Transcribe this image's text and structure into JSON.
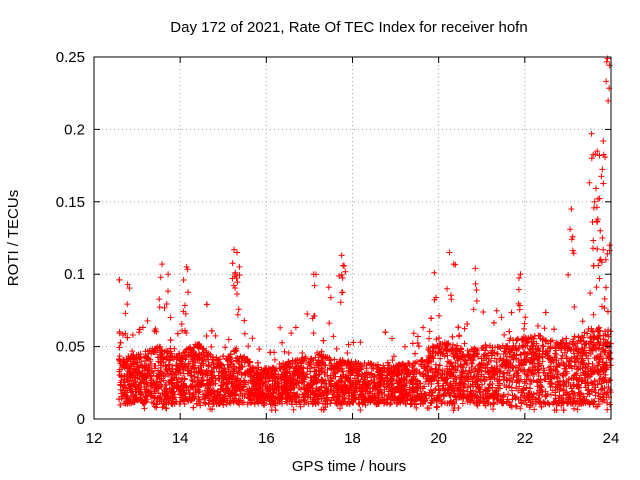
{
  "chart_data": {
    "type": "scatter",
    "title": "Day 172 of 2021, Rate Of TEC Index for receiver hofn",
    "xlabel": "GPS time / hours",
    "ylabel": "ROTI / TECUs",
    "xlim": [
      12,
      24
    ],
    "ylim": [
      0,
      0.25
    ],
    "xticks": [
      12,
      14,
      16,
      18,
      20,
      22,
      24
    ],
    "xtick_labels": [
      "12",
      "14",
      "16",
      "18",
      "20",
      "22",
      "24"
    ],
    "yticks": [
      0,
      0.05,
      0.1,
      0.15,
      0.2,
      0.25
    ],
    "ytick_labels": [
      "0",
      "0.05",
      "0.1",
      "0.15",
      "0.2",
      "0.25"
    ],
    "grid": true,
    "marker": "+",
    "color": "#ff0000",
    "series": [
      {
        "name": "ROTI",
        "x_range": [
          12.58,
          24.0
        ],
        "baseline_range": [
          0.01,
          0.05
        ],
        "notable_points": [
          {
            "x": 12.78,
            "y": 0.093
          },
          {
            "x": 13.58,
            "y": 0.107
          },
          {
            "x": 13.72,
            "y": 0.1
          },
          {
            "x": 14.08,
            "y": 0.096
          },
          {
            "x": 14.15,
            "y": 0.105
          },
          {
            "x": 15.25,
            "y": 0.117
          },
          {
            "x": 15.32,
            "y": 0.115
          },
          {
            "x": 15.28,
            "y": 0.101
          },
          {
            "x": 17.1,
            "y": 0.1
          },
          {
            "x": 17.45,
            "y": 0.091
          },
          {
            "x": 17.75,
            "y": 0.113
          },
          {
            "x": 17.78,
            "y": 0.106
          },
          {
            "x": 19.9,
            "y": 0.101
          },
          {
            "x": 20.25,
            "y": 0.115
          },
          {
            "x": 20.35,
            "y": 0.107
          },
          {
            "x": 20.85,
            "y": 0.104
          },
          {
            "x": 21.9,
            "y": 0.1
          },
          {
            "x": 23.08,
            "y": 0.145
          },
          {
            "x": 23.05,
            "y": 0.131
          },
          {
            "x": 23.55,
            "y": 0.197
          },
          {
            "x": 23.68,
            "y": 0.185
          },
          {
            "x": 23.82,
            "y": 0.192
          },
          {
            "x": 23.92,
            "y": 0.249
          },
          {
            "x": 23.62,
            "y": 0.15
          },
          {
            "x": 23.7,
            "y": 0.152
          },
          {
            "x": 23.75,
            "y": 0.13
          },
          {
            "x": 23.8,
            "y": 0.125
          },
          {
            "x": 23.88,
            "y": 0.11
          },
          {
            "x": 23.97,
            "y": 0.12
          }
        ],
        "activity_profile": [
          {
            "x": 12.6,
            "level": 0.034
          },
          {
            "x": 13.0,
            "level": 0.036
          },
          {
            "x": 13.5,
            "level": 0.04
          },
          {
            "x": 14.0,
            "level": 0.036
          },
          {
            "x": 14.4,
            "level": 0.042
          },
          {
            "x": 15.0,
            "level": 0.032
          },
          {
            "x": 15.3,
            "level": 0.04
          },
          {
            "x": 15.8,
            "level": 0.028
          },
          {
            "x": 16.5,
            "level": 0.032
          },
          {
            "x": 17.2,
            "level": 0.036
          },
          {
            "x": 18.0,
            "level": 0.032
          },
          {
            "x": 19.0,
            "level": 0.03
          },
          {
            "x": 19.7,
            "level": 0.034
          },
          {
            "x": 20.0,
            "level": 0.046
          },
          {
            "x": 20.6,
            "level": 0.038
          },
          {
            "x": 21.5,
            "level": 0.042
          },
          {
            "x": 22.2,
            "level": 0.046
          },
          {
            "x": 23.0,
            "level": 0.042
          },
          {
            "x": 23.6,
            "level": 0.05
          },
          {
            "x": 24.0,
            "level": 0.048
          }
        ]
      }
    ]
  }
}
